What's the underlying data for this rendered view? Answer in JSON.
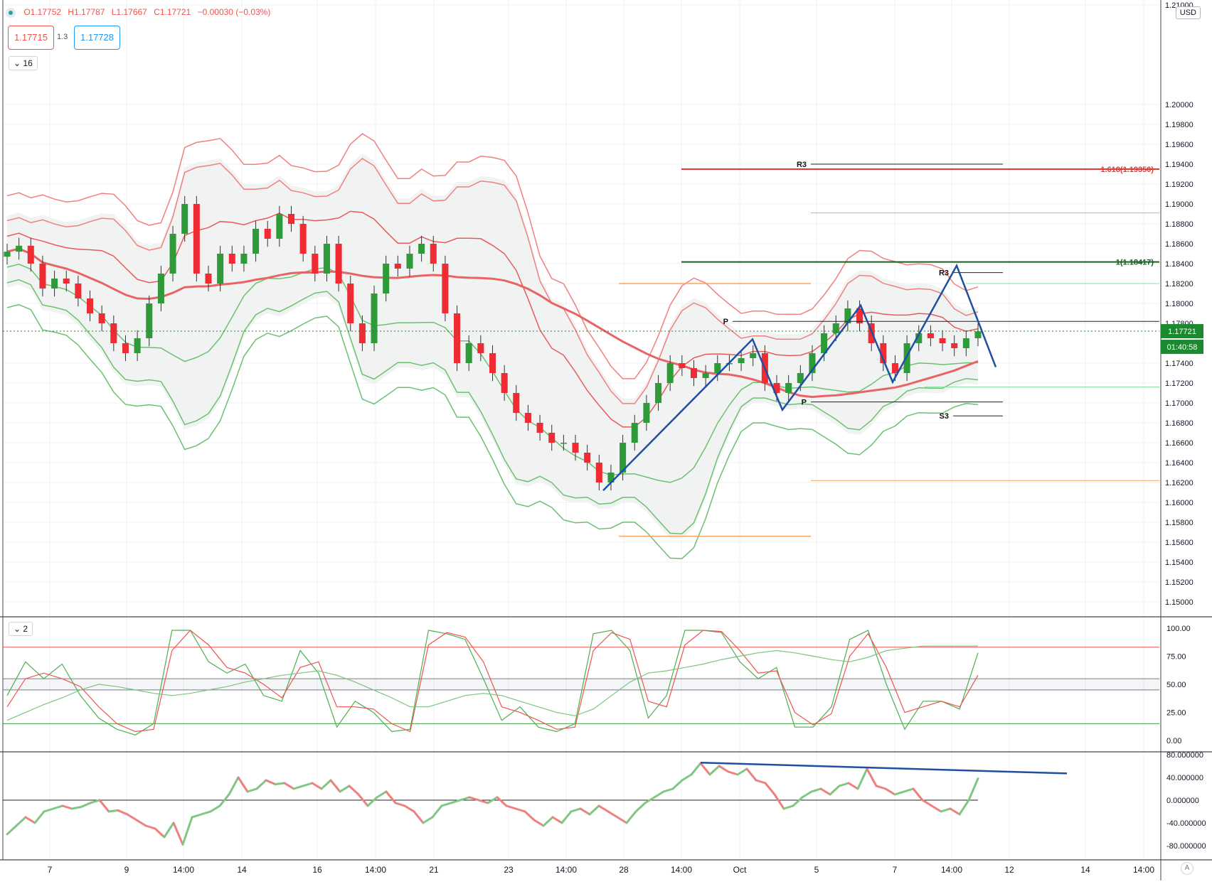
{
  "ohlc_legend": {
    "open": "O1.17752",
    "high": "H1.17787",
    "low": "L1.17667",
    "close": "C1.17721",
    "change": "−0.00030 (−0.03%)"
  },
  "quote": {
    "sell": "1.17715",
    "spread": "1.3",
    "buy": "1.17728"
  },
  "panes": {
    "price_collapse": "16",
    "osc_collapse": "2"
  },
  "currency": "USD",
  "auto_label": "A",
  "last_price": {
    "value": "1.17721",
    "timer": "01:40:58",
    "color": "#1b8a2e"
  },
  "colors": {
    "up": "#2f9a3a",
    "down": "#ef2b33",
    "band_red": "#f08080",
    "band_green": "#6cc070",
    "pattern": "#1f4fa0",
    "fib_orange": "#f7a35c",
    "pivot": "#222222"
  },
  "chart_data": [
    {
      "type": "candlestick",
      "x_ticks": [
        "7",
        "9",
        "14:00",
        "14",
        "16",
        "14:00",
        "21",
        "23",
        "14:00",
        "28",
        "14:00",
        "Oct",
        "5",
        "7",
        "14:00",
        "12",
        "14",
        "14:00"
      ],
      "y_ticks": [
        "1.21000",
        "1.20000",
        "1.19800",
        "1.19600",
        "1.19400",
        "1.19200",
        "1.19000",
        "1.18800",
        "1.18600",
        "1.18400",
        "1.18200",
        "1.18000",
        "1.17800",
        "1.17400",
        "1.17200",
        "1.17000",
        "1.16800",
        "1.16600",
        "1.16400",
        "1.16200",
        "1.16000",
        "1.15800",
        "1.15600",
        "1.15400",
        "1.15200",
        "1.15000"
      ],
      "ylim": [
        1.1485,
        1.2105
      ],
      "close_path": [
        1.1852,
        1.1858,
        1.184,
        1.1815,
        1.1825,
        1.182,
        1.1805,
        1.179,
        1.178,
        1.176,
        1.175,
        1.1765,
        1.18,
        1.183,
        1.187,
        1.19,
        1.183,
        1.182,
        1.185,
        1.184,
        1.185,
        1.1875,
        1.1865,
        1.189,
        1.188,
        1.185,
        1.183,
        1.186,
        1.182,
        1.178,
        1.176,
        1.181,
        1.184,
        1.1835,
        1.185,
        1.186,
        1.184,
        1.179,
        1.174,
        1.176,
        1.175,
        1.173,
        1.171,
        1.169,
        1.168,
        1.167,
        1.166,
        1.166,
        1.165,
        1.164,
        1.162,
        1.163,
        1.166,
        1.168,
        1.17,
        1.172,
        1.174,
        1.1735,
        1.1725,
        1.173,
        1.174,
        1.174,
        1.1745,
        1.175,
        1.172,
        1.171,
        1.172,
        1.173,
        1.175,
        1.177,
        1.178,
        1.1795,
        1.178,
        1.176,
        1.174,
        1.173,
        1.176,
        1.177,
        1.1765,
        1.176,
        1.1755,
        1.1765,
        1.1772
      ],
      "levels": [
        {
          "label": "R3",
          "value": 1.194
        },
        {
          "label": "1.618(1.19350)",
          "value": 1.1935
        },
        {
          "label": "",
          "value": 1.1891
        },
        {
          "label": "1(1.18417)",
          "value": 1.18417
        },
        {
          "label": "R3",
          "value": 1.1831
        },
        {
          "label": "",
          "value": 1.182
        },
        {
          "label": "",
          "value": 1.182
        },
        {
          "label": "P",
          "value": 1.1782
        },
        {
          "label": "P",
          "value": 1.1701
        },
        {
          "label": "S3",
          "value": 1.1687
        },
        {
          "label": "",
          "value": 1.1622
        },
        {
          "label": "",
          "value": 1.1566
        },
        {
          "label": "",
          "value": 1.1716
        }
      ]
    },
    {
      "type": "line",
      "name": "stochastic",
      "y_ticks": [
        "100.00",
        "75.00",
        "50.00",
        "25.00",
        "0.00"
      ],
      "ylim": [
        -10,
        110
      ],
      "bands": [
        83,
        55,
        45,
        15
      ],
      "series": [
        {
          "values": [
            40,
            70,
            55,
            68,
            40,
            20,
            10,
            5,
            15,
            98,
            98,
            70,
            60,
            68,
            40,
            35,
            80,
            60,
            12,
            35,
            25,
            8,
            10,
            98,
            95,
            90,
            55,
            18,
            30,
            12,
            8,
            15,
            95,
            98,
            80,
            20,
            40,
            98,
            98,
            96,
            70,
            55,
            65,
            12,
            12,
            30,
            90,
            98,
            50,
            10,
            35,
            35,
            28,
            78
          ]
        },
        {
          "values": [
            30,
            55,
            60,
            55,
            48,
            30,
            15,
            8,
            10,
            80,
            98,
            85,
            65,
            60,
            50,
            38,
            65,
            70,
            30,
            30,
            28,
            15,
            8,
            85,
            96,
            92,
            70,
            30,
            25,
            18,
            10,
            12,
            80,
            96,
            90,
            35,
            30,
            85,
            98,
            97,
            80,
            60,
            62,
            25,
            14,
            24,
            75,
            95,
            65,
            25,
            30,
            35,
            30,
            58
          ]
        },
        {
          "values": [
            18,
            25,
            32,
            38,
            45,
            50,
            48,
            45,
            42,
            40,
            42,
            45,
            48,
            52,
            55,
            58,
            60,
            62,
            58,
            52,
            45,
            38,
            30,
            30,
            35,
            40,
            42,
            40,
            35,
            30,
            25,
            22,
            28,
            40,
            52,
            60,
            62,
            65,
            68,
            72,
            75,
            78,
            80,
            78,
            75,
            72,
            70,
            74,
            80,
            82,
            84,
            84,
            84,
            84
          ]
        }
      ]
    },
    {
      "type": "line",
      "name": "oscillator",
      "y_ticks": [
        "80.000000",
        "40.000000",
        "0.000000",
        "-40.000000",
        "-80.000000"
      ],
      "ylim": [
        -105,
        85
      ],
      "values": [
        -60,
        -45,
        -30,
        -40,
        -20,
        -15,
        -10,
        -15,
        -12,
        -5,
        0,
        -20,
        -18,
        -25,
        -35,
        -45,
        -50,
        -65,
        -40,
        -78,
        -30,
        -25,
        -20,
        -10,
        10,
        40,
        15,
        20,
        35,
        28,
        30,
        20,
        25,
        30,
        20,
        35,
        15,
        25,
        10,
        -10,
        5,
        15,
        -5,
        -10,
        -20,
        -40,
        -30,
        -10,
        -5,
        0,
        5,
        0,
        -5,
        5,
        -10,
        -15,
        -20,
        -35,
        -45,
        -30,
        -40,
        -20,
        -15,
        -25,
        -10,
        -20,
        -30,
        -40,
        -20,
        -5,
        5,
        15,
        20,
        35,
        45,
        65,
        45,
        60,
        50,
        45,
        55,
        35,
        30,
        10,
        -15,
        -10,
        5,
        15,
        20,
        10,
        25,
        30,
        20,
        55,
        25,
        20,
        10,
        15,
        20,
        0,
        -10,
        -20,
        -15,
        -25,
        0,
        38
      ],
      "trend_line": [
        66,
        47
      ]
    }
  ]
}
